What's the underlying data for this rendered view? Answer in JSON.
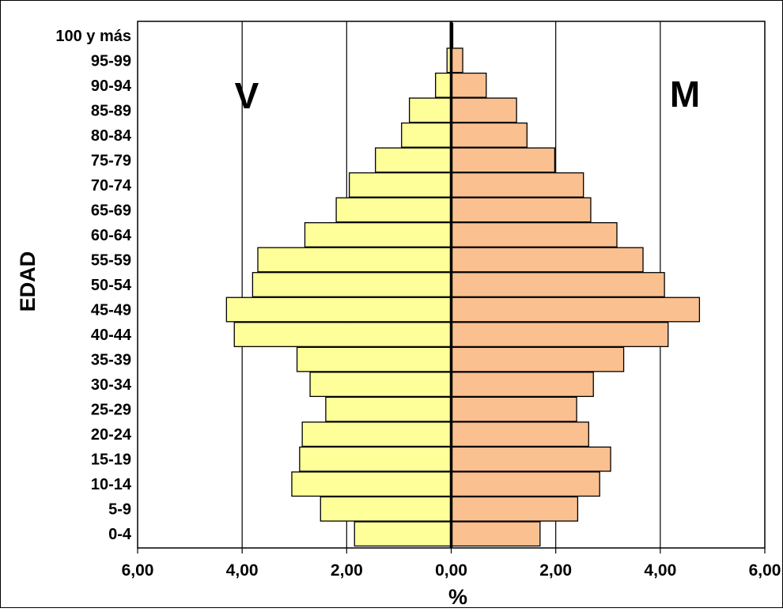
{
  "chart_data": {
    "type": "bar",
    "orientation": "horizontal",
    "layout": "population-pyramid",
    "categories": [
      "0-4",
      "5-9",
      "10-14",
      "15-19",
      "20-24",
      "25-29",
      "30-34",
      "35-39",
      "40-44",
      "45-49",
      "50-54",
      "55-59",
      "60-64",
      "65-69",
      "70-74",
      "75-79",
      "80-84",
      "85-89",
      "90-94",
      "95-99",
      "100 y más"
    ],
    "series": [
      {
        "name": "V",
        "side": "left",
        "color": "#ffff99",
        "values": [
          1.85,
          2.5,
          3.05,
          2.9,
          2.85,
          2.4,
          2.7,
          2.95,
          4.15,
          4.3,
          3.8,
          3.7,
          2.8,
          2.2,
          1.95,
          1.45,
          0.95,
          0.8,
          0.3,
          0.08,
          0.02
        ]
      },
      {
        "name": "M",
        "side": "right",
        "color": "#fac090",
        "values": [
          1.7,
          2.42,
          2.84,
          3.05,
          2.63,
          2.4,
          2.72,
          3.3,
          4.15,
          4.75,
          4.08,
          3.67,
          3.17,
          2.67,
          2.53,
          1.98,
          1.45,
          1.25,
          0.67,
          0.22,
          0.03
        ]
      }
    ],
    "xlim": [
      -6,
      6
    ],
    "x_ticks": [
      -6,
      -4,
      -2,
      0,
      2,
      4,
      6
    ],
    "x_tick_labels": [
      "6,00",
      "4,00",
      "2,00",
      "0,00",
      "2,00",
      "4,00",
      "6,00"
    ],
    "xlabel": "%",
    "ylabel": "EDAD",
    "grid": "vertical",
    "legend": "none"
  }
}
